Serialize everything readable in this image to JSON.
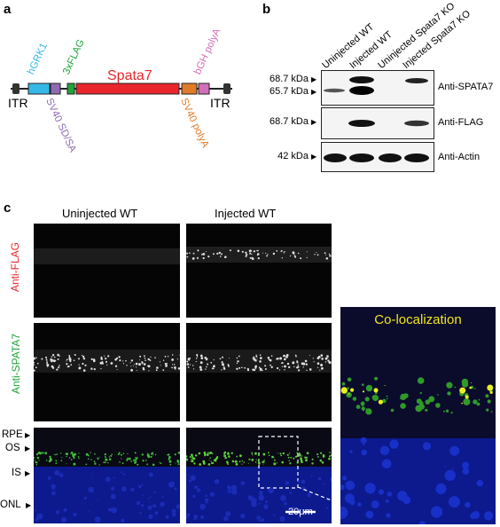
{
  "panel_a": {
    "letter": "a",
    "elements": {
      "hgrk1": "hGRK1",
      "flag": "3xFLAG",
      "spata7": "Spata7",
      "bgh": "bGH polyA",
      "itr_left": "ITR",
      "itr_right": "ITR",
      "sv40_sdsa": "SV40 SD/SA",
      "sv40_polya": "SV40 polyA"
    },
    "colors": {
      "hgrk1": "#35b8e6",
      "sdsa": "#8e6bb3",
      "flag": "#1fa53a",
      "spata7": "#e8262b",
      "sv40polya": "#e07b2a",
      "bgh": "#d36fb9"
    }
  },
  "panel_b": {
    "letter": "b",
    "lanes": [
      "Uninjected WT",
      "Injected WT",
      "Uninjected Spata7 KO",
      "Injected Spata7 KO"
    ],
    "blots": [
      {
        "markers": [
          "68.7 kDa",
          "65.7 kDa"
        ],
        "antibody": "Anti-SPATA7"
      },
      {
        "markers": [
          "68.7 kDa"
        ],
        "antibody": "Anti-FLAG"
      },
      {
        "markers": [
          "42 kDa"
        ],
        "antibody": "Anti-Actin"
      }
    ]
  },
  "panel_c": {
    "letter": "c",
    "columns": [
      "Uninjected WT",
      "Injected WT"
    ],
    "rows": [
      "Anti-FLAG",
      "Anti-SPATA7"
    ],
    "row_colors": [
      "#e8262b",
      "#1fa53a"
    ],
    "layers": [
      "RPE",
      "OS",
      "IS",
      "ONL"
    ],
    "scale_bar": "20μm",
    "inset_title": "Co-localization",
    "inset_title_color": "#f2e51a"
  }
}
